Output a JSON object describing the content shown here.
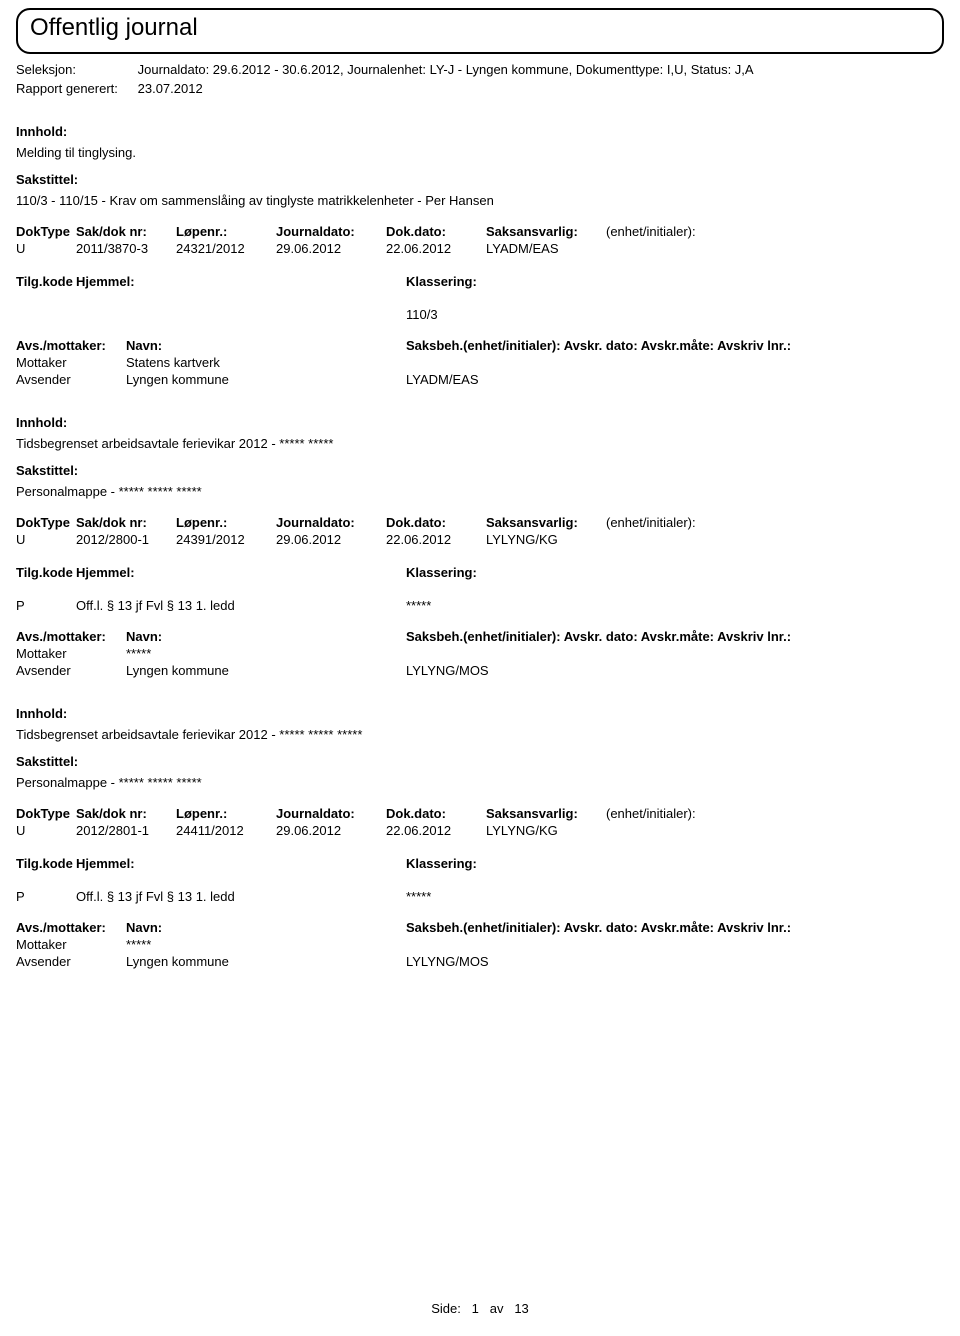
{
  "header": {
    "title": "Offentlig journal"
  },
  "meta": {
    "seleksjon_label": "Seleksjon:",
    "seleksjon_value": "Journaldato: 29.6.2012 - 30.6.2012, Journalenhet: LY-J - Lyngen kommune, Dokumenttype: I,U, Status: J,A",
    "rapport_label": "Rapport generert:",
    "rapport_value": "23.07.2012"
  },
  "labels": {
    "innhold": "Innhold:",
    "sakstittel": "Sakstittel:",
    "doktype": "DokType",
    "sakdok": "Sak/dok nr:",
    "lopenr": "Løpenr.:",
    "journaldato": "Journaldato:",
    "dokdato": "Dok.dato:",
    "saksansvarlig": "Saksansvarlig:",
    "enhet_initialer": "(enhet/initialer):",
    "tilgkode": "Tilg.kode",
    "hjemmel": "Hjemmel:",
    "klassering": "Klassering:",
    "avs_mottaker": "Avs./mottaker:",
    "navn": "Navn:",
    "saksbeh_line": "Saksbeh.(enhet/initialer): Avskr. dato: Avskr.måte: Avskriv lnr.:",
    "mottaker": "Mottaker",
    "avsender": "Avsender"
  },
  "entries": [
    {
      "innhold": "Melding til tinglysing.",
      "sakstittel": "110/3 - 110/15 - Krav om sammenslåing av tinglyste matrikkelenheter - Per Hansen",
      "doktype": "U",
      "sakdok": "2011/3870-3",
      "lopenr": "24321/2012",
      "journaldato": "29.06.2012",
      "dokdato": "22.06.2012",
      "saksansvarlig": "LYADM/EAS",
      "tilgkode": "",
      "hjemmel": "",
      "klassering": "110/3",
      "mottaker_name": "Statens kartverk",
      "avsender_name": "Lyngen kommune",
      "avsender_rest": "LYADM/EAS"
    },
    {
      "innhold": "Tidsbegrenset arbeidsavtale ferievikar 2012 - ***** *****",
      "sakstittel": "Personalmappe - ***** ***** *****",
      "doktype": "U",
      "sakdok": "2012/2800-1",
      "lopenr": "24391/2012",
      "journaldato": "29.06.2012",
      "dokdato": "22.06.2012",
      "saksansvarlig": "LYLYNG/KG",
      "tilgkode": "P",
      "hjemmel": "Off.l. § 13 jf Fvl § 13 1. ledd",
      "klassering": "*****",
      "mottaker_name": "*****",
      "avsender_name": "Lyngen kommune",
      "avsender_rest": "LYLYNG/MOS"
    },
    {
      "innhold": "Tidsbegrenset arbeidsavtale ferievikar 2012 - ***** ***** *****",
      "sakstittel": "Personalmappe - ***** ***** *****",
      "doktype": "U",
      "sakdok": "2012/2801-1",
      "lopenr": "24411/2012",
      "journaldato": "29.06.2012",
      "dokdato": "22.06.2012",
      "saksansvarlig": "LYLYNG/KG",
      "tilgkode": "P",
      "hjemmel": "Off.l. § 13 jf Fvl § 13 1. ledd",
      "klassering": "*****",
      "mottaker_name": "*****",
      "avsender_name": "Lyngen kommune",
      "avsender_rest": "LYLYNG/MOS"
    }
  ],
  "footer": {
    "side_label": "Side:",
    "current": "1",
    "av": "av",
    "total": "13"
  }
}
